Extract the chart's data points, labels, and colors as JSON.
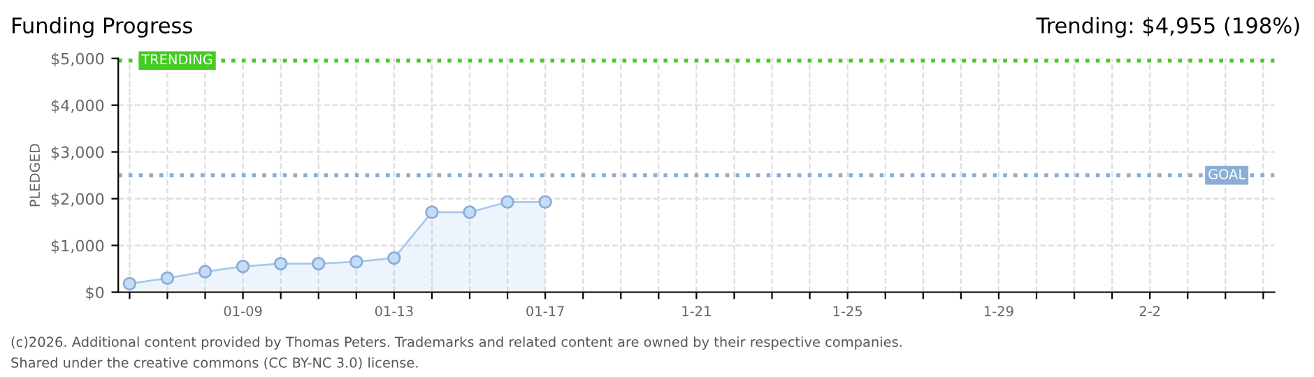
{
  "chart_data": {
    "type": "area",
    "title": "Funding Progress",
    "subtitle": "Trending: $4,955 (198%)",
    "ylabel": "PLEDGED",
    "categories": [
      null,
      null,
      null,
      "01-09",
      null,
      null,
      null,
      "01-13",
      null,
      null,
      null,
      "01-17",
      null,
      null,
      null,
      "1-21",
      null,
      null,
      null,
      "1-25",
      null,
      null,
      null,
      "1-29",
      null,
      null,
      null,
      "2-2",
      null,
      null,
      null
    ],
    "series": [
      {
        "color": "#a9c8ec",
        "values": [
          180,
          300,
          440,
          550,
          610,
          610,
          650,
          730,
          1710,
          1710,
          1930,
          1930,
          null,
          null,
          null,
          null,
          null,
          null,
          null,
          null,
          null,
          null,
          null,
          null,
          null,
          null,
          null,
          null,
          null,
          null,
          null
        ]
      }
    ],
    "ylim": [
      0,
      5000
    ],
    "yticks": [
      {
        "value": 0,
        "label": "$0"
      },
      {
        "value": 1000,
        "label": "$1,000"
      },
      {
        "value": 2000,
        "label": "$2,000"
      },
      {
        "value": 3000,
        "label": "$3,000"
      },
      {
        "value": 4000,
        "label": "$4,000"
      },
      {
        "value": 5000,
        "label": "$5,000"
      }
    ],
    "ref_lines": [
      {
        "axis": "y",
        "value": 4955,
        "label": "TRENDING",
        "color": "#44cc22",
        "line_style": "dotted"
      },
      {
        "axis": "y",
        "value": 2500,
        "label": "GOAL",
        "color": "#8aaed6",
        "line_style": "dotted"
      }
    ],
    "grid": true,
    "marker": "circle",
    "legend": false,
    "annotations": [
      "(c)2026. Additional content provided by Thomas Peters. Trademarks and related content are owned by their respective companies.",
      "Shared under the creative commons (CC BY-NC 3.0) license."
    ]
  }
}
